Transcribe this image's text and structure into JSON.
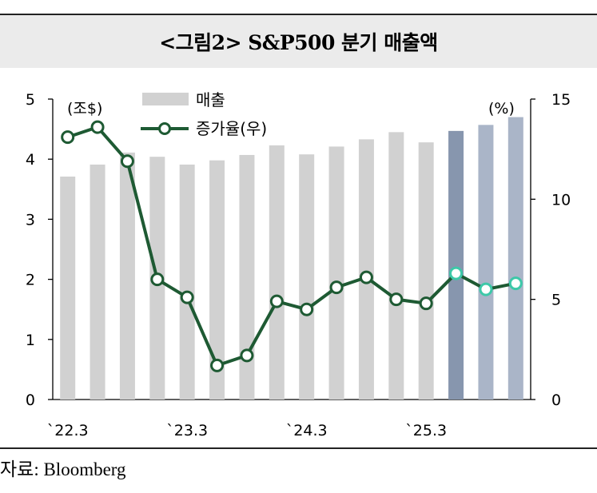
{
  "title": "<그림2> S&P500 분기 매출액",
  "source": "자료: Bloomberg",
  "chart_data": {
    "type": "bar+line",
    "left_axis_unit": "(조$)",
    "right_axis_unit": "(%)",
    "left_ticks": [
      "5",
      "4",
      "3",
      "2",
      "1",
      "0"
    ],
    "right_ticks": [
      "15",
      "10",
      "5",
      "0"
    ],
    "ylim_left": [
      0,
      5
    ],
    "ylim_right": [
      0,
      15
    ],
    "x_tick_labels": [
      "`22.3",
      "`23.3",
      "`24.3",
      "`25.3"
    ],
    "x_tick_indices": [
      0,
      4,
      8,
      12
    ],
    "legend": {
      "bar_label": "매출",
      "line_label": "증가율(우)",
      "placement": "top-center"
    },
    "colors": {
      "bar": "#d1d1d1",
      "bar_forecast_first": "#8796ae",
      "bar_forecast": "#aab5c8",
      "line": "#1e5a33",
      "marker_forecast": "#3dc8a8"
    },
    "n_periods": 16,
    "forecast_start_index": 13,
    "series": [
      {
        "name": "매출",
        "axis": "left",
        "values": [
          3.71,
          3.91,
          4.11,
          4.04,
          3.91,
          3.98,
          4.07,
          4.23,
          4.08,
          4.21,
          4.33,
          4.45,
          4.28,
          4.47,
          4.57,
          4.7
        ]
      },
      {
        "name": "증가율(우)",
        "axis": "right",
        "values": [
          13.1,
          13.6,
          11.9,
          6.0,
          5.1,
          1.7,
          2.2,
          4.9,
          4.5,
          5.6,
          6.1,
          5.0,
          4.8,
          6.3,
          5.5,
          5.8
        ]
      }
    ]
  }
}
